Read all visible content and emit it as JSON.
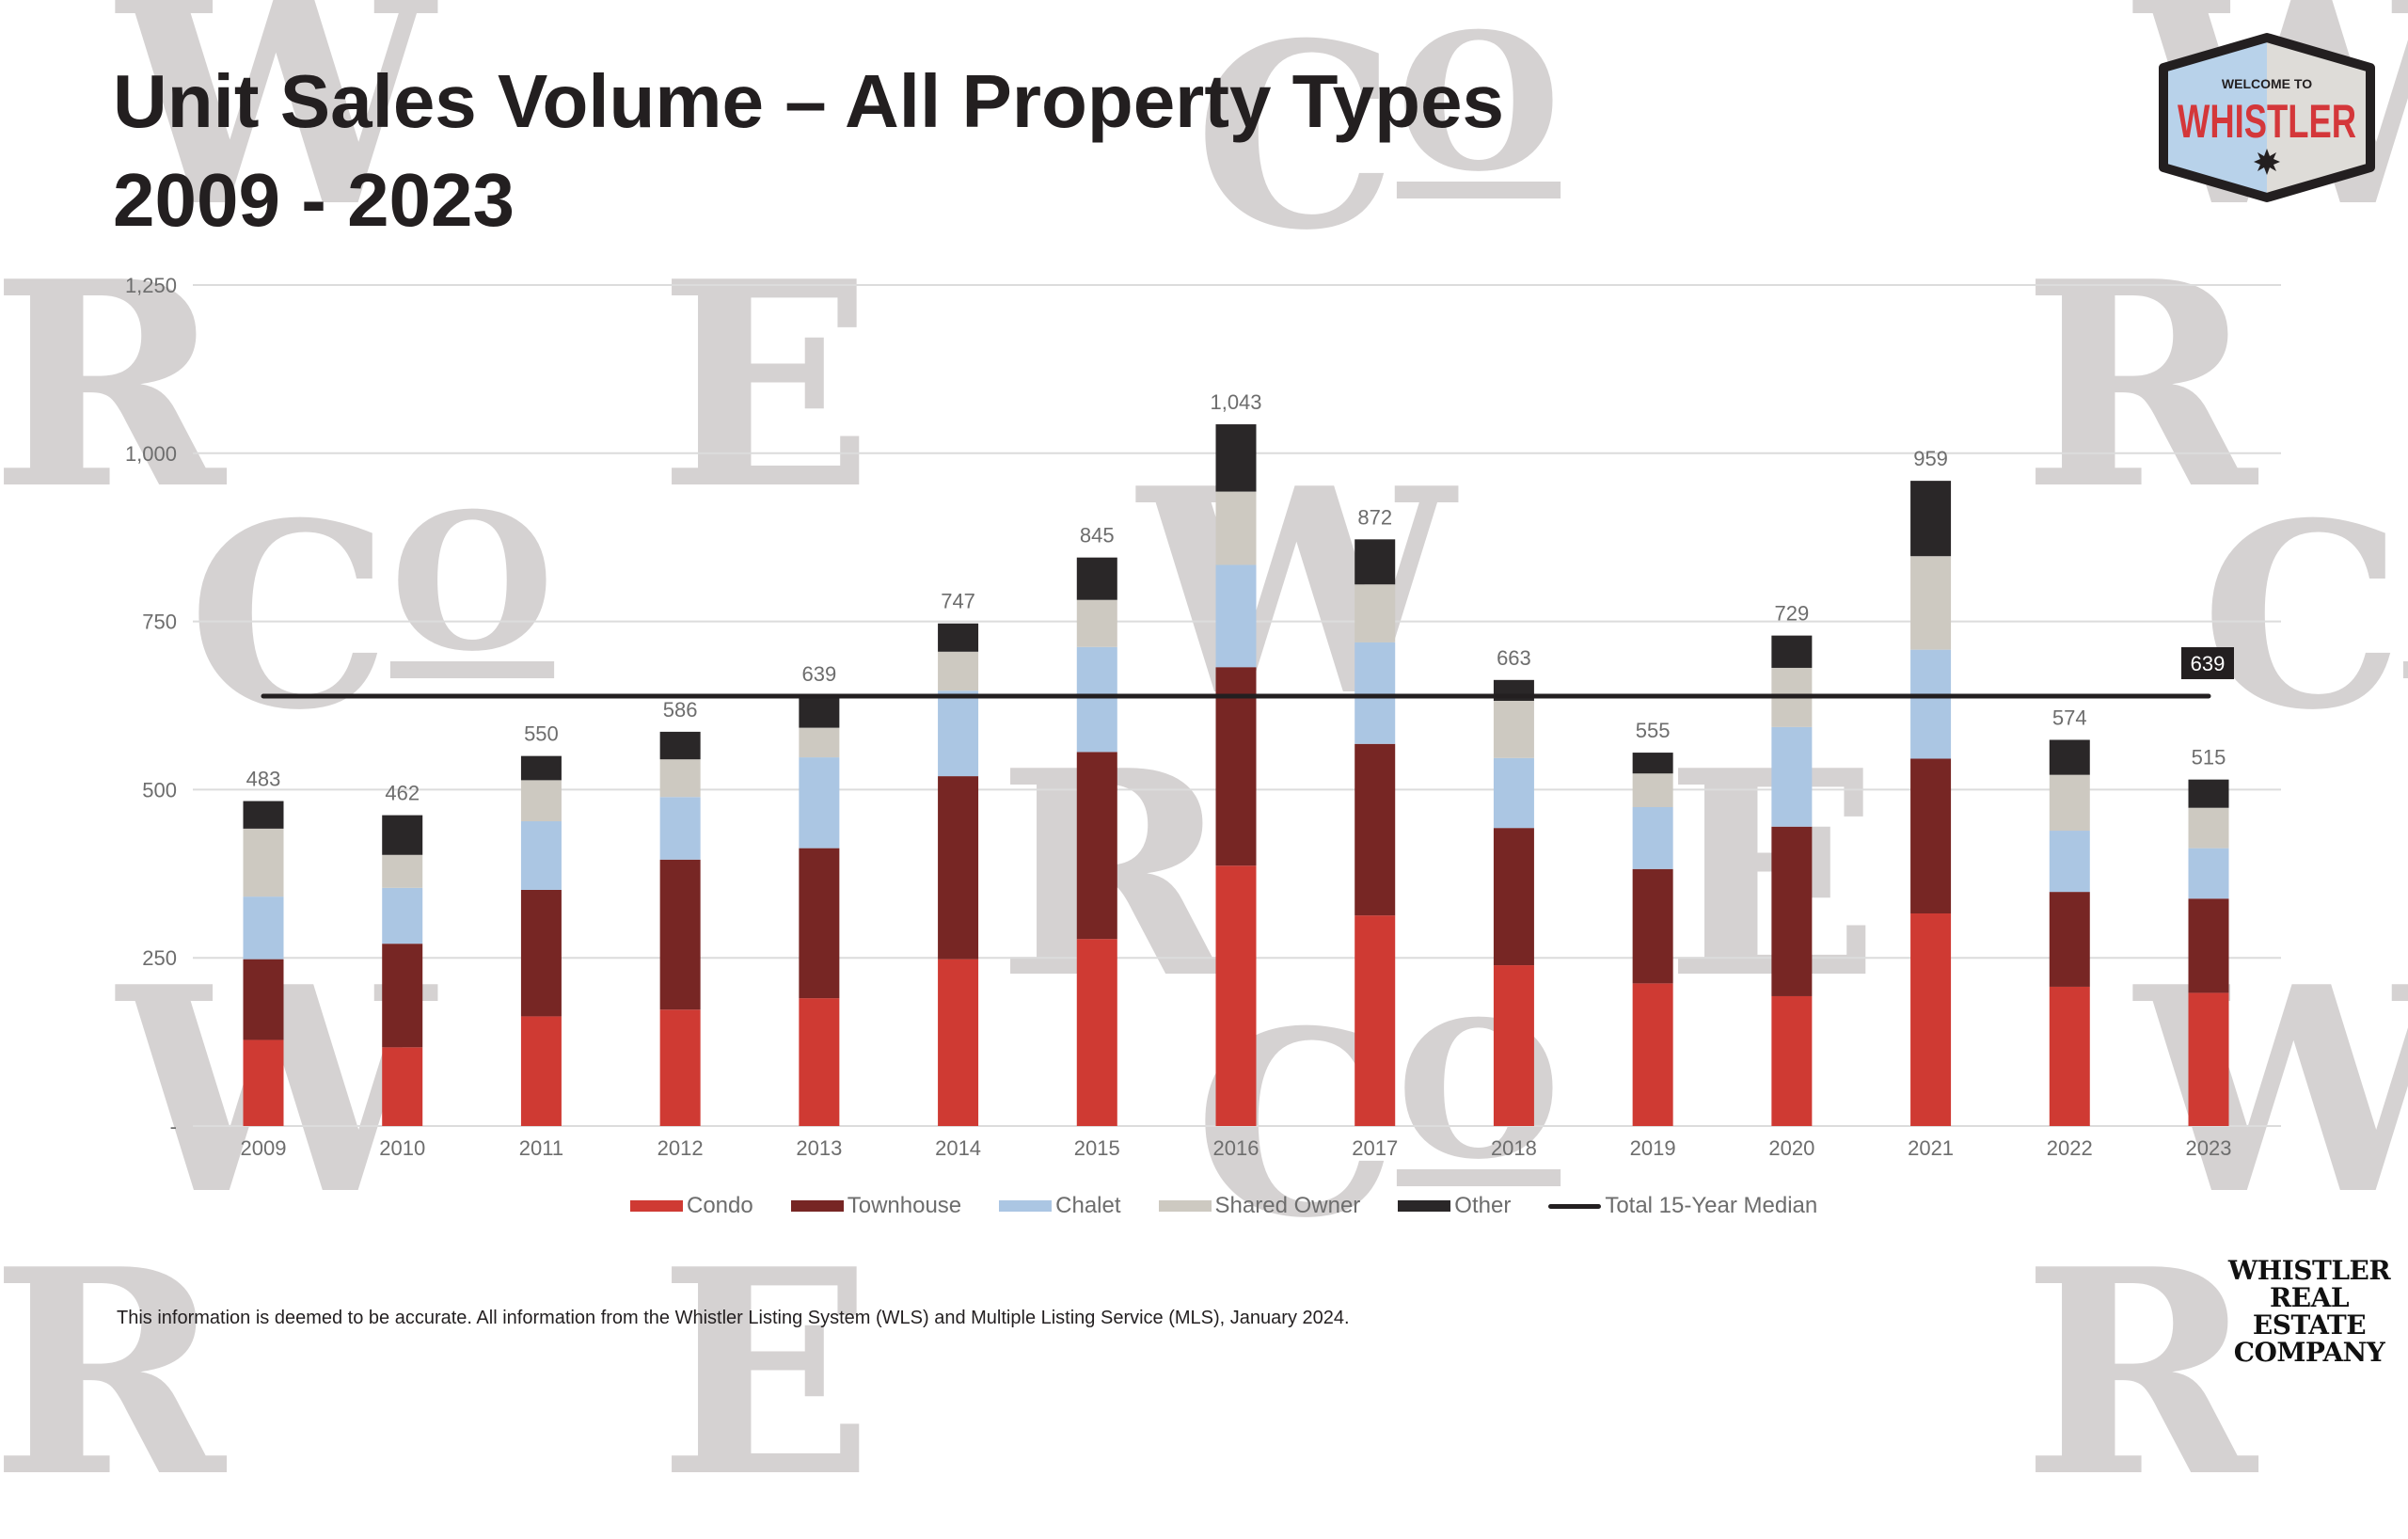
{
  "header": {
    "title_line1": "Unit Sales Volume – All Property Types",
    "title_line2": "2009 - 2023"
  },
  "badge": {
    "top_text": "WELCOME TO",
    "main_text": "WHISTLER"
  },
  "company_logo": {
    "line1": "WHISTLER",
    "line2": "REAL ESTATE",
    "line3": "COMPANY"
  },
  "watermark_letters": [
    "W",
    "CO",
    "R",
    "E"
  ],
  "footer": {
    "disclaimer": "This information is deemed to be accurate. All information from the Whistler Listing System (WLS) and Multiple Listing Service (MLS), January 2024."
  },
  "colors": {
    "condo": "#cf3a33",
    "townhouse": "#772624",
    "chalet": "#abc6e3",
    "shared_owner": "#cdc9c1",
    "other": "#2a2728",
    "median_line": "#231f20",
    "grid": "#dcdcdc",
    "axis_text": "#6d6d6d"
  },
  "chart_data": {
    "type": "bar",
    "stacked": true,
    "title": "Unit Sales Volume – All Property Types 2009 - 2023",
    "xlabel": "",
    "ylabel": "",
    "ylim": [
      0,
      1250
    ],
    "yticks": [
      0,
      250,
      500,
      750,
      1000,
      1250
    ],
    "ytick_labels": [
      "-",
      "250",
      "500",
      "750",
      "1,000",
      "1,250"
    ],
    "grid": true,
    "legend_position": "bottom",
    "categories": [
      "2009",
      "2010",
      "2011",
      "2012",
      "2013",
      "2014",
      "2015",
      "2016",
      "2017",
      "2018",
      "2019",
      "2020",
      "2021",
      "2022",
      "2023"
    ],
    "series": [
      {
        "name": "Condo",
        "key": "condo",
        "values": [
          128,
          117,
          163,
          173,
          190,
          248,
          278,
          387,
          313,
          239,
          212,
          193,
          316,
          207,
          198
        ]
      },
      {
        "name": "Townhouse",
        "key": "townhouse",
        "values": [
          120,
          154,
          188,
          223,
          223,
          272,
          278,
          295,
          255,
          204,
          170,
          252,
          230,
          141,
          140
        ]
      },
      {
        "name": "Chalet",
        "key": "chalet",
        "values": [
          93,
          83,
          102,
          93,
          135,
          127,
          156,
          152,
          151,
          104,
          92,
          148,
          162,
          91,
          75
        ]
      },
      {
        "name": "Shared Owner",
        "key": "shared_owner",
        "values": [
          101,
          49,
          61,
          56,
          44,
          58,
          70,
          109,
          86,
          85,
          50,
          88,
          139,
          83,
          60
        ]
      },
      {
        "name": "Other",
        "key": "other",
        "values": [
          41,
          59,
          36,
          41,
          47,
          42,
          63,
          100,
          67,
          31,
          31,
          48,
          112,
          52,
          42
        ]
      }
    ],
    "totals": [
      483,
      462,
      550,
      586,
      639,
      747,
      845,
      1043,
      872,
      663,
      555,
      729,
      959,
      574,
      515
    ],
    "total_labels": [
      "483",
      "462",
      "550",
      "586",
      "639",
      "747",
      "845",
      "1,043",
      "872",
      "663",
      "555",
      "729",
      "959",
      "574",
      "515"
    ],
    "reference_line": {
      "name": "Total 15-Year Median",
      "value": 639,
      "label": "639"
    },
    "legend": [
      "Condo",
      "Townhouse",
      "Chalet",
      "Shared Owner",
      "Other",
      "Total 15-Year Median"
    ]
  }
}
